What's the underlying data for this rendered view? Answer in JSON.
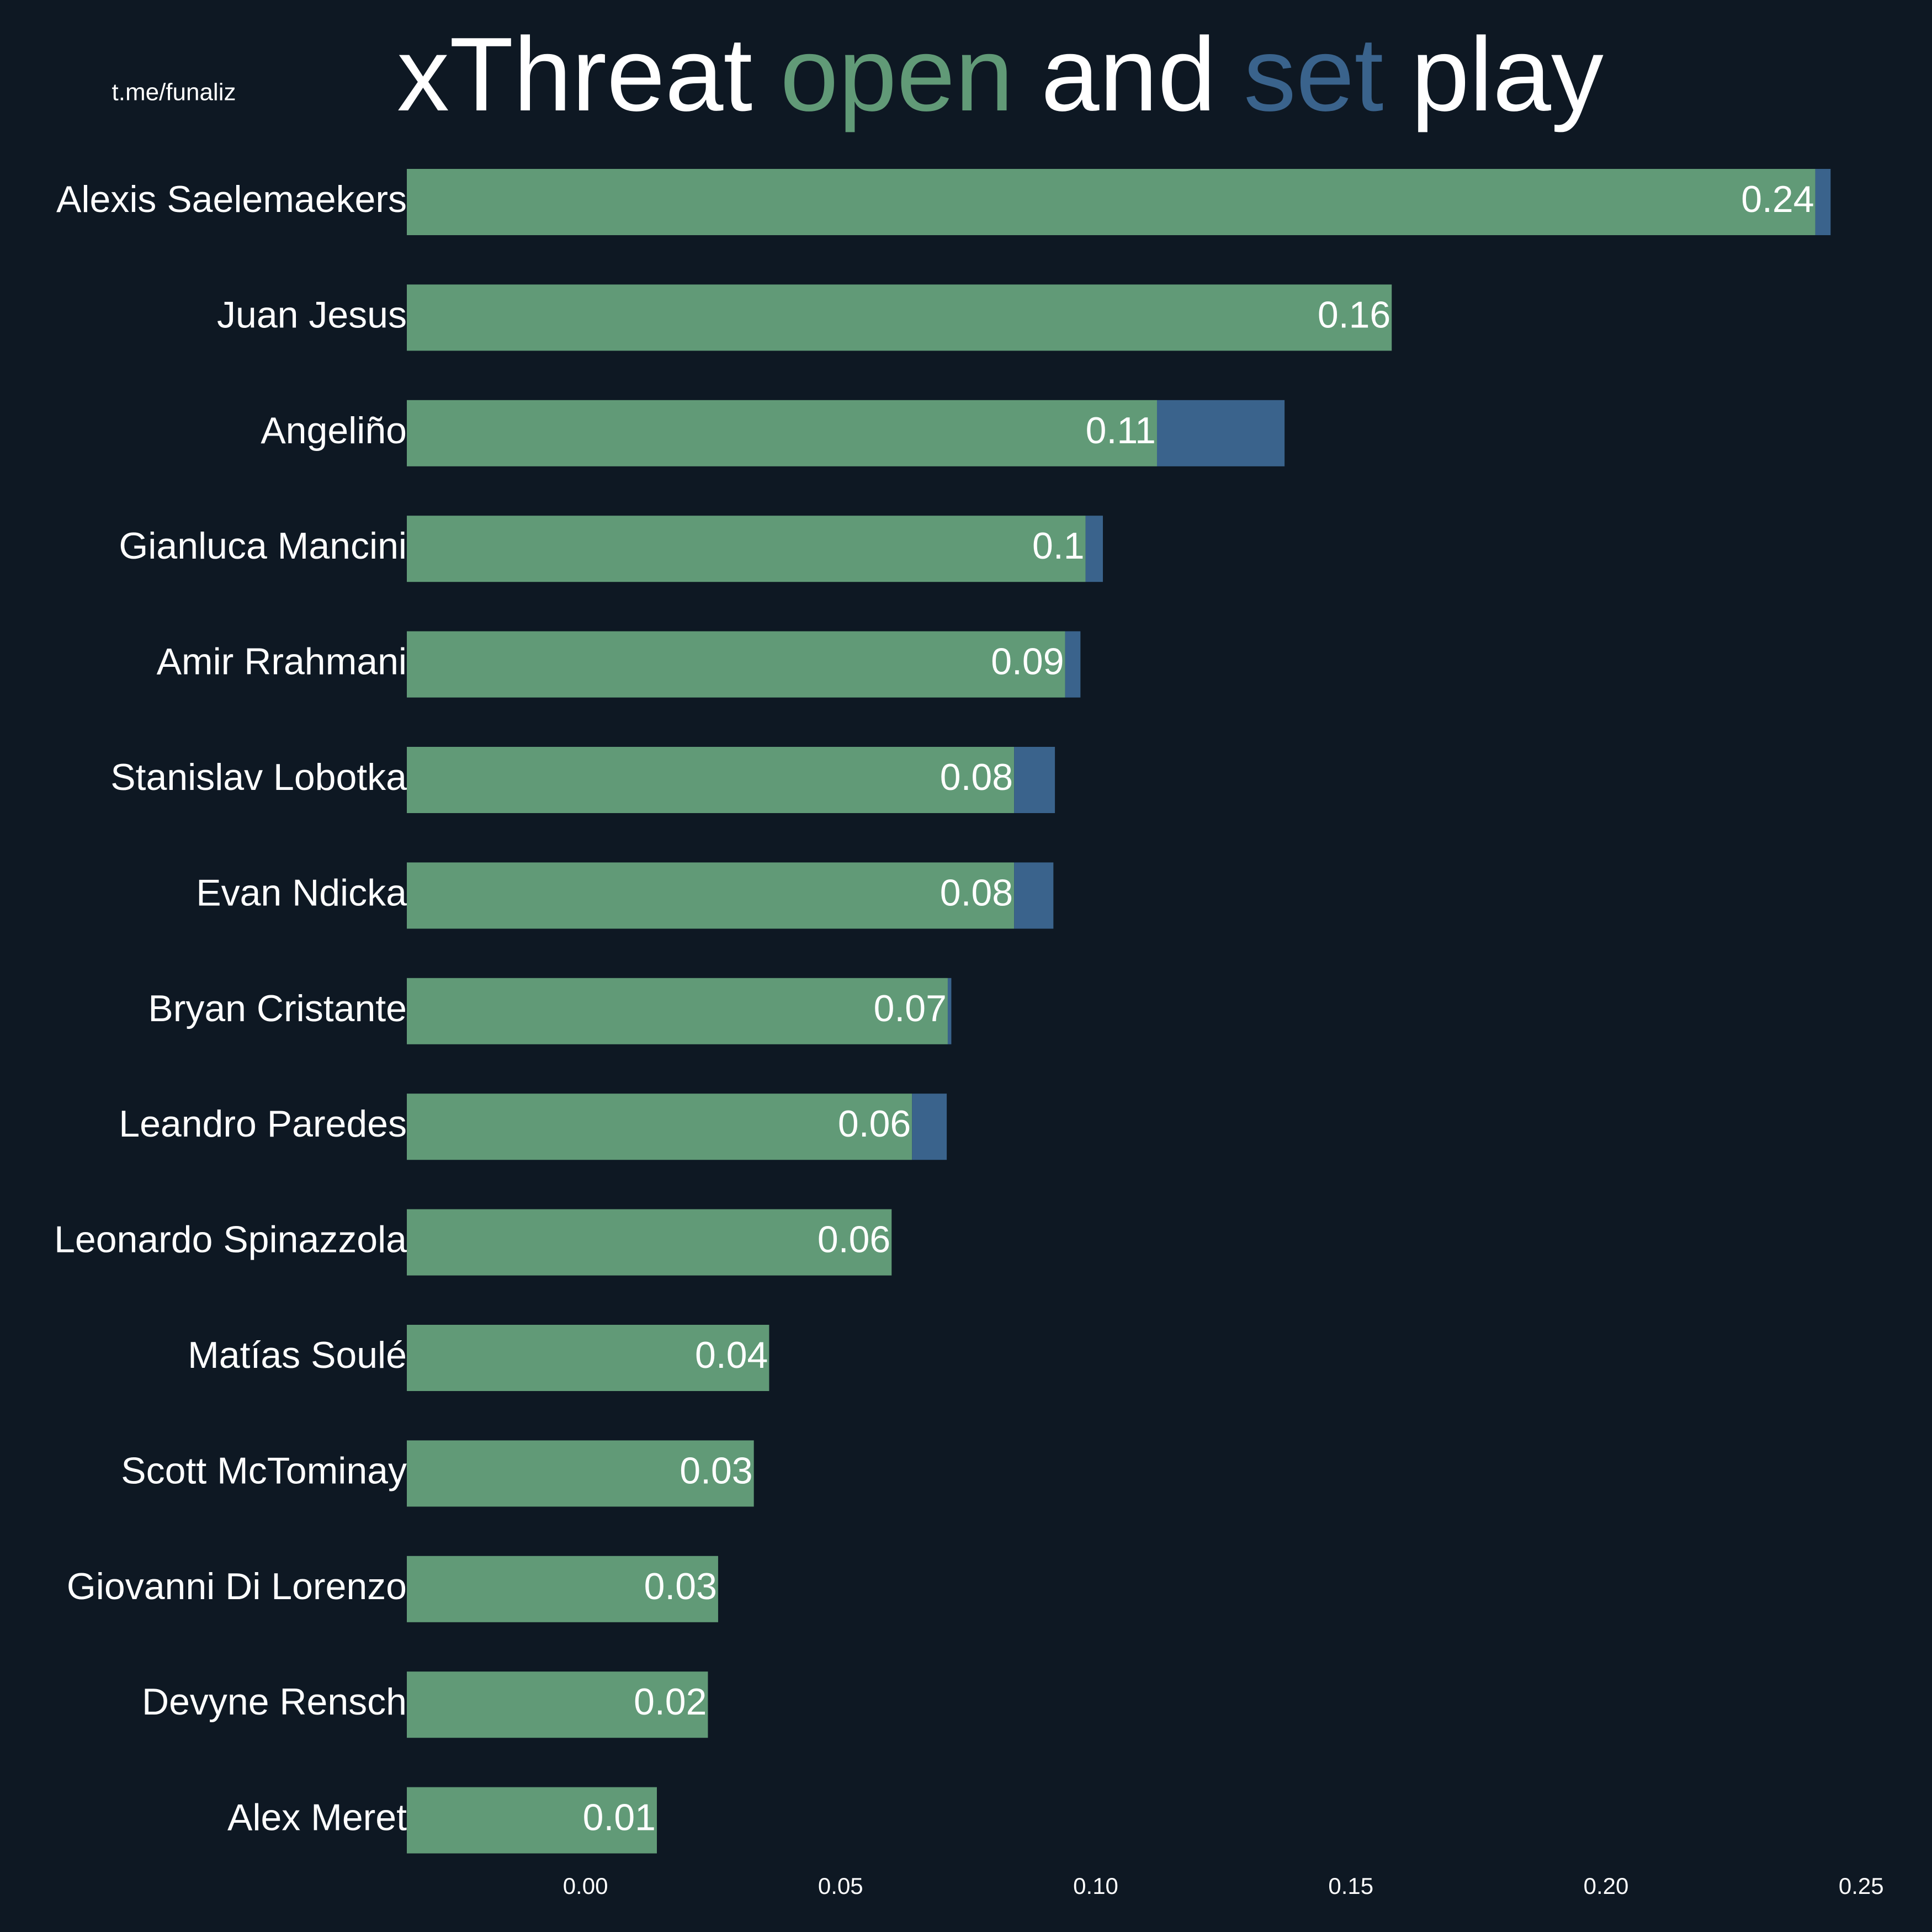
{
  "chart_data": {
    "type": "stacked_barh",
    "watermark": "t.me/funaliz",
    "title_parts": [
      "xThreat",
      "and",
      "play"
    ],
    "categories": [
      "Alexis Saelemaekers",
      "Juan Jesus",
      "Angeliño",
      "Gianluca Mancini",
      "Amir Rrahmani",
      "Stanislav Lobotka",
      "Evan Ndicka",
      "Bryan Cristante",
      "Leandro Paredes",
      "Leonardo Spinazzola",
      "Matías Soulé",
      "Scott McTominay",
      "Giovanni Di Lorenzo",
      "Devyne Rensch",
      "Alex Meret"
    ],
    "series": [
      {
        "name": "open",
        "color": "#619a77",
        "values": [
          0.241,
          0.158,
          0.112,
          0.098,
          0.094,
          0.084,
          0.084,
          0.071,
          0.064,
          0.06,
          0.036,
          0.033,
          0.026,
          0.024,
          0.014
        ],
        "value_labels": [
          "0.24",
          "0.16",
          "0.11",
          "0.1",
          "0.09",
          "0.08",
          "0.08",
          "0.07",
          "0.06",
          "0.06",
          "0.04",
          "0.03",
          "0.03",
          "0.02",
          "0.01"
        ]
      },
      {
        "name": "set",
        "color": "#3a638c",
        "values": [
          0.003,
          0,
          0.025,
          0.0034,
          0.003,
          0.008,
          0.0077,
          0.0007,
          0.0068,
          0,
          0,
          0,
          0,
          0,
          0
        ]
      }
    ],
    "xlim": [
      -0.035,
      0.255
    ],
    "xticks": [
      {
        "value": 0,
        "label": "0.00"
      },
      {
        "value": 0.05,
        "label": "0.05"
      },
      {
        "value": 0.1,
        "label": "0.10"
      },
      {
        "value": 0.15,
        "label": "0.15"
      },
      {
        "value": 0.2,
        "label": "0.20"
      },
      {
        "value": 0.25,
        "label": "0.25"
      }
    ],
    "grid": false,
    "background": "#0e1823"
  }
}
